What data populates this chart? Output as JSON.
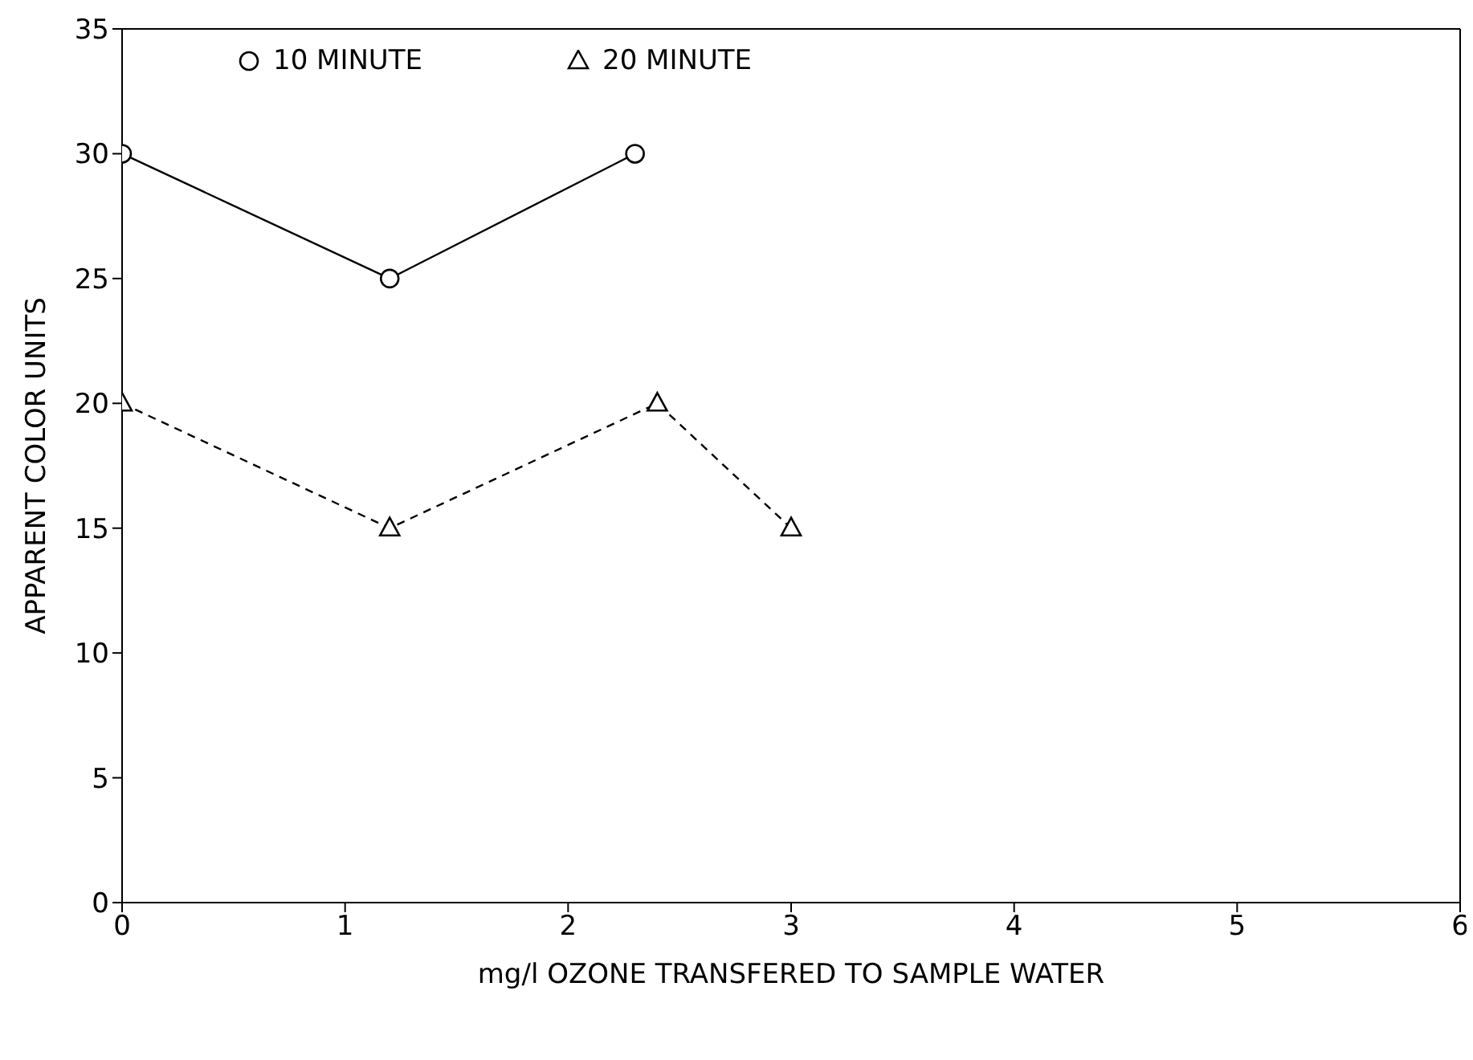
{
  "chart_data": {
    "type": "line",
    "xlabel": "mg/l OZONE TRANSFERED TO SAMPLE WATER",
    "ylabel": "APPARENT COLOR UNITS",
    "xlim": [
      0,
      6
    ],
    "xticks": [
      0,
      1,
      2,
      3,
      4,
      5,
      6
    ],
    "ylim": [
      0,
      35
    ],
    "yticks": [
      0,
      5,
      10,
      15,
      20,
      25,
      30,
      35
    ],
    "grid": false,
    "legend": "top left",
    "series": [
      {
        "name": "10 MINUTE",
        "color": "#000000",
        "marker": "circle",
        "line_style": "solid",
        "x": [
          0,
          1.2,
          2.3
        ],
        "values": [
          30,
          25,
          30
        ]
      },
      {
        "name": "20 MINUTE",
        "color": "#000000",
        "marker": "triangle",
        "line_style": "dashed",
        "x": [
          0,
          1.2,
          2.4,
          3.0
        ],
        "values": [
          20,
          15,
          20,
          15
        ]
      }
    ]
  }
}
